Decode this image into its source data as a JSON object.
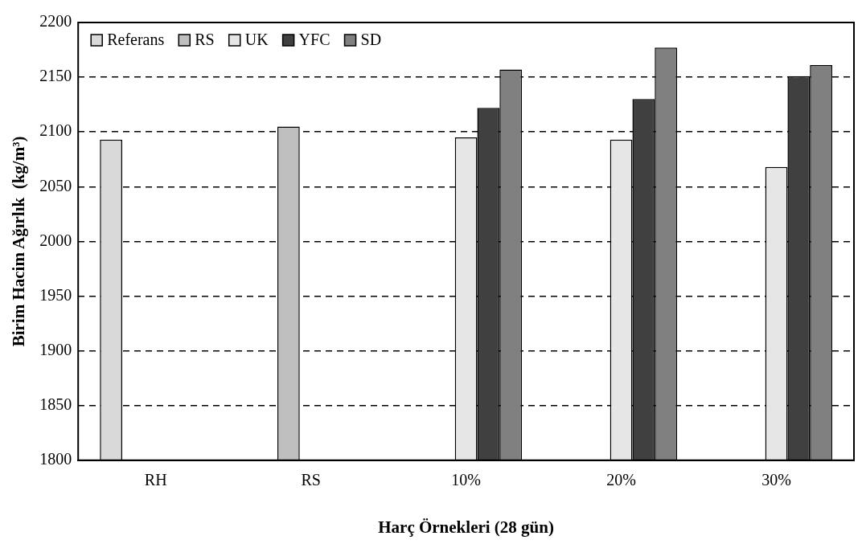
{
  "chart_data": {
    "type": "bar",
    "xlabel": "Harç Örnekleri (28 gün)",
    "ylabel": "Birim Hacim Ağırlık  (kg/m³)",
    "categories": [
      "RH",
      "RS",
      "10%",
      "20%",
      "30%"
    ],
    "series": [
      {
        "name": "Referans",
        "color": "#d9d9d9",
        "values": [
          2093,
          null,
          null,
          null,
          null
        ]
      },
      {
        "name": "RS",
        "color": "#bfbfbf",
        "values": [
          null,
          2105,
          null,
          null,
          null
        ]
      },
      {
        "name": "UK",
        "color": "#e6e6e6",
        "values": [
          null,
          null,
          2095,
          2093,
          2068
        ]
      },
      {
        "name": "YFC",
        "color": "#404040",
        "values": [
          null,
          null,
          2122,
          2130,
          2151
        ]
      },
      {
        "name": "SD",
        "color": "#808080",
        "values": [
          null,
          null,
          2157,
          2177,
          2161
        ]
      }
    ],
    "ylim": [
      1800,
      2200
    ],
    "yticks": [
      1800,
      1850,
      1900,
      1950,
      2000,
      2050,
      2100,
      2150,
      2200
    ],
    "grid": "y",
    "legend": "top left"
  }
}
